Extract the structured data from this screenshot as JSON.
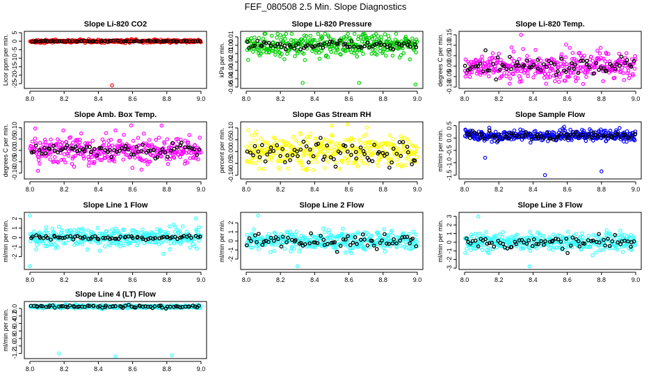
{
  "figure_title": "FEF_080508  2.5 Min. Slope Diagnostics",
  "chart_data": [
    {
      "id": "p1",
      "type": "scatter",
      "title": "Slope Li-820 CO2",
      "ylabel": "Licor ppm per min.",
      "xlim": [
        8.0,
        9.0
      ],
      "ylim": [
        -27,
        5
      ],
      "xticks": [
        "8.0",
        "8.2",
        "8.4",
        "8.6",
        "8.8",
        "9.0"
      ],
      "yticks": [
        "-25",
        "-20",
        "-15",
        "-10",
        "-5",
        "0",
        "5"
      ],
      "color": "#ff0000",
      "series_base": 0.0,
      "series_spread": 0.8,
      "black_spread": 0.3,
      "outliers": [
        [
          8.48,
          -26
        ]
      ]
    },
    {
      "id": "p2",
      "type": "scatter",
      "title": "Slope Li-820 Pressure",
      "ylabel": "kPa per min.",
      "xlim": [
        8.0,
        9.0
      ],
      "ylim": [
        -0.05,
        0.015
      ],
      "xticks": [
        "8.0",
        "8.2",
        "8.4",
        "8.6",
        "8.8",
        "9.0"
      ],
      "yticks": [
        "-0.05",
        "-0.04",
        "-0.03",
        "-0.02",
        "-0.01",
        "0.00",
        "0.01"
      ],
      "color": "#00cc00",
      "series_base": 0.0,
      "series_spread": 0.012,
      "black_spread": 0.004,
      "outliers": [
        [
          8.33,
          -0.045
        ],
        [
          8.66,
          -0.045
        ],
        [
          8.99,
          -0.047
        ]
      ]
    },
    {
      "id": "p3",
      "type": "scatter",
      "title": "Slope Li-820 Temp.",
      "ylabel": "degrees C per min.",
      "xlim": [
        8.0,
        9.0
      ],
      "ylim": [
        -0.1,
        0.16
      ],
      "xticks": [
        "8.0",
        "8.2",
        "8.4",
        "8.6",
        "8.8",
        "9.0"
      ],
      "yticks": [
        "-0.10",
        "-0.05",
        "0.00",
        "0.05",
        "0.10",
        "0.15"
      ],
      "color": "#ff00ff",
      "series_base": 0.0,
      "series_spread": 0.06,
      "black_spread": 0.04,
      "outliers": [
        [
          8.33,
          0.15
        ]
      ]
    },
    {
      "id": "p4",
      "type": "scatter",
      "title": "Slope Amb. Box Temp.",
      "ylabel": "degrees C per min.",
      "xlim": [
        8.0,
        9.0
      ],
      "ylim": [
        -0.12,
        0.12
      ],
      "xticks": [
        "8.0",
        "8.2",
        "8.4",
        "8.6",
        "8.8",
        "9.0"
      ],
      "yticks": [
        "-0.10",
        "-0.05",
        "0.00",
        "0.05",
        "0.10"
      ],
      "color": "#ff00ff",
      "series_base": 0.0,
      "series_spread": 0.06,
      "black_spread": 0.03,
      "outliers": [
        [
          8.77,
          0.11
        ]
      ]
    },
    {
      "id": "p5",
      "type": "scatter",
      "title": "Slope Gas Stream RH",
      "ylabel": "percent per min.",
      "xlim": [
        8.0,
        9.0
      ],
      "ylim": [
        -0.11,
        0.12
      ],
      "xticks": [
        "8.0",
        "8.2",
        "8.4",
        "8.6",
        "8.8",
        "9.0"
      ],
      "yticks": [
        "-0.10",
        "-0.05",
        "0.00",
        "0.05",
        "0.10"
      ],
      "color": "#ffff00",
      "series_base": 0.0,
      "series_spread": 0.06,
      "black_spread": 0.05,
      "outliers": [
        [
          8.5,
          0.11
        ]
      ]
    },
    {
      "id": "p6",
      "type": "scatter",
      "title": "Slope Sample Flow",
      "ylabel": "ml/min per min.",
      "xlim": [
        8.0,
        9.0
      ],
      "ylim": [
        -1.6,
        0.6
      ],
      "xticks": [
        "8.0",
        "8.2",
        "8.4",
        "8.6",
        "8.8",
        "9.0"
      ],
      "yticks": [
        "-1.5",
        "-1.0",
        "-0.5",
        "0.0",
        "0.5"
      ],
      "color": "#0000ff",
      "series_base": 0.1,
      "series_spread": 0.2,
      "black_spread": 0.15,
      "outliers": [
        [
          8.12,
          -0.8
        ],
        [
          8.47,
          -1.5
        ],
        [
          8.8,
          -1.35
        ]
      ]
    },
    {
      "id": "p7",
      "type": "scatter",
      "title": "Slope Line 1 Flow",
      "ylabel": "ml/min per min.",
      "xlim": [
        8.0,
        9.0
      ],
      "ylim": [
        -3.2,
        2.5
      ],
      "xticks": [
        "8.0",
        "8.2",
        "8.4",
        "8.6",
        "8.8",
        "9.0"
      ],
      "yticks": [
        "-2",
        "-1",
        "0",
        "1",
        "2"
      ],
      "color": "#33ffff",
      "series_base": 0.0,
      "series_spread": 0.9,
      "black_spread": 0.2,
      "outliers": [
        [
          8.0,
          2.3
        ],
        [
          8.0,
          -3.0
        ],
        [
          8.97,
          2.0
        ]
      ]
    },
    {
      "id": "p8",
      "type": "scatter",
      "title": "Slope Line 2 Flow",
      "ylabel": "ml/min per min.",
      "xlim": [
        8.0,
        9.0
      ],
      "ylim": [
        -3.0,
        3.0
      ],
      "xticks": [
        "8.0",
        "8.2",
        "8.4",
        "8.6",
        "8.8",
        "9.0"
      ],
      "yticks": [
        "-2",
        "-1",
        "0",
        "1",
        "2"
      ],
      "color": "#33ffff",
      "series_base": 0.0,
      "series_spread": 0.9,
      "black_spread": 0.7,
      "outliers": [
        [
          8.07,
          2.8
        ],
        [
          8.3,
          -2.8
        ]
      ]
    },
    {
      "id": "p9",
      "type": "scatter",
      "title": "Slope Line 3 Flow",
      "ylabel": "ml/min per min.",
      "xlim": [
        8.0,
        9.0
      ],
      "ylim": [
        -3.0,
        3.3
      ],
      "xticks": [
        "8.0",
        "8.2",
        "8.4",
        "8.6",
        "8.8",
        "9.0"
      ],
      "yticks": [
        "-3",
        "-2",
        "-1",
        "0",
        "1",
        "2",
        "3"
      ],
      "color": "#33ffff",
      "series_base": 0.0,
      "series_spread": 0.9,
      "black_spread": 0.7,
      "outliers": [
        [
          8.08,
          3.0
        ],
        [
          8.38,
          -2.8
        ]
      ]
    },
    {
      "id": "p10",
      "type": "scatter",
      "title": "Slope Line 4 (LT) Flow",
      "ylabel": "ml/min per min.",
      "xlim": [
        8.0,
        9.0
      ],
      "ylim": [
        -1.3,
        0.15
      ],
      "xticks": [
        "8.0",
        "8.2",
        "8.4",
        "8.6",
        "8.8",
        "9.0"
      ],
      "yticks": [
        "-1.2",
        "-1.0",
        "-0.8",
        "-0.6",
        "-0.4",
        "-0.2",
        "0.0"
      ],
      "color": "#33ffff",
      "series_base": 0.05,
      "series_spread": 0.04,
      "black_spread": 0.03,
      "outliers": [
        [
          8.17,
          -1.2
        ],
        [
          8.5,
          -1.28
        ],
        [
          8.83,
          -1.25
        ]
      ]
    }
  ]
}
